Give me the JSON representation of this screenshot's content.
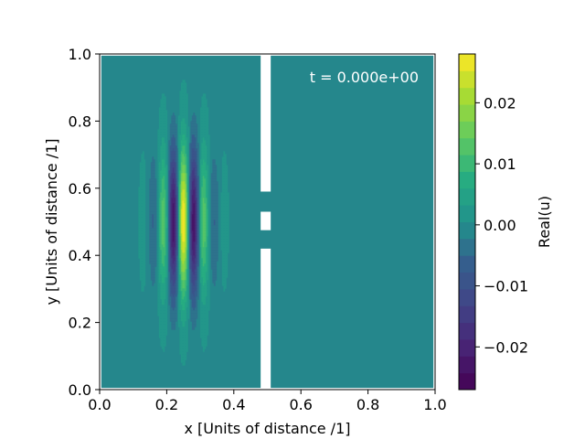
{
  "chart_data": {
    "type": "heatmap",
    "plot_type": "filled-contour",
    "xlabel": "x [Units of distance /1]",
    "ylabel": "y [Units of distance /1]",
    "xlim": [
      0.0,
      1.0
    ],
    "ylim": [
      0.0,
      1.0
    ],
    "x_ticks": [
      0.0,
      0.2,
      0.4,
      0.6,
      0.8,
      1.0
    ],
    "x_tick_labels": [
      "0.0",
      "0.2",
      "0.4",
      "0.6",
      "0.8",
      "1.0"
    ],
    "y_ticks": [
      0.0,
      0.2,
      0.4,
      0.6,
      0.8,
      1.0
    ],
    "y_tick_labels": [
      "0.0",
      "0.2",
      "0.4",
      "0.6",
      "0.8",
      "1.0"
    ],
    "annotation": "t = 0.000e+00",
    "grid": false,
    "colormap": "viridis",
    "field": {
      "name": "Real(u)",
      "background_value": 0.0,
      "packet": {
        "center_x": 0.25,
        "center_y": 0.5,
        "sigma_x": 0.05,
        "sigma_y": 0.15,
        "wavenumber_x": 100,
        "amplitude": 0.028
      }
    },
    "masked_regions": [
      {
        "x": [
          0.48,
          0.51
        ],
        "y": [
          0.0,
          0.42
        ]
      },
      {
        "x": [
          0.48,
          0.51
        ],
        "y": [
          0.475,
          0.53
        ]
      },
      {
        "x": [
          0.48,
          0.51
        ],
        "y": [
          0.59,
          1.0
        ]
      }
    ],
    "colorbar": {
      "label": "Real(u)",
      "range": [
        -0.027,
        0.028
      ],
      "ticks": [
        -0.02,
        -0.01,
        0.0,
        0.01,
        0.02
      ],
      "tick_labels": [
        "−0.02",
        "−0.01",
        "0.00",
        "0.01",
        "0.02"
      ],
      "levels": 20
    }
  }
}
